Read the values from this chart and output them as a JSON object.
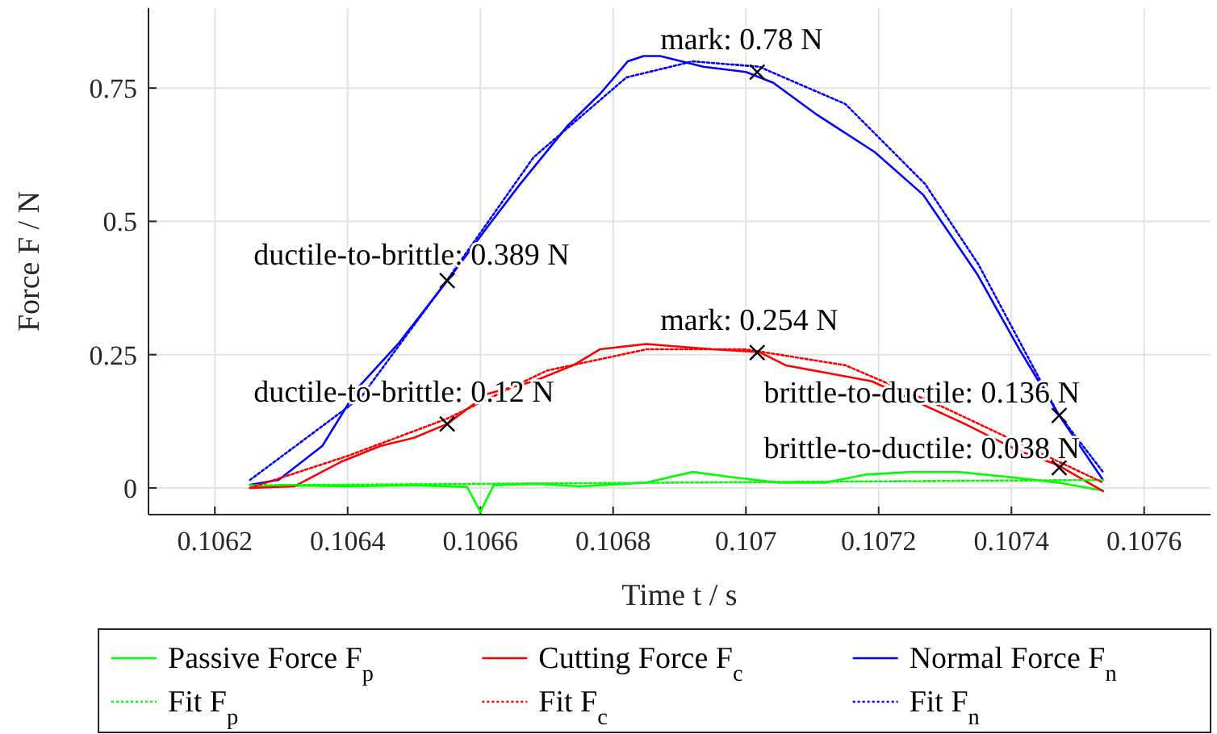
{
  "chart_data": {
    "type": "line",
    "xlabel": "Time t / s",
    "ylabel": "Force F / N",
    "xlim": [
      0.1061,
      0.1077
    ],
    "ylim": [
      -0.05,
      0.9
    ],
    "xticks": [
      0.1062,
      0.1064,
      0.1066,
      0.1068,
      0.107,
      0.1072,
      0.1074,
      0.1076
    ],
    "yticks": [
      0,
      0.25,
      0.5,
      0.75
    ],
    "grid": true,
    "legend": "bottom",
    "line_style": "solid",
    "series": [
      {
        "name": "Passive Force F$_{p}$",
        "color": "#00ff00",
        "x": [
          0.106253,
          0.1063,
          0.1064,
          0.1065,
          0.10658,
          0.1066,
          0.10662,
          0.10668,
          0.10675,
          0.10685,
          0.10692,
          0.10698,
          0.10705,
          0.10712,
          0.10718,
          0.10725,
          0.10732,
          0.1074,
          0.10747,
          0.107538
        ],
        "values": [
          0,
          0.005,
          0.003,
          0.005,
          0.002,
          -0.045,
          0.005,
          0.008,
          0.003,
          0.01,
          0.03,
          0.02,
          0.01,
          0.01,
          0.025,
          0.03,
          0.03,
          0.02,
          0.01,
          -0.005
        ]
      },
      {
        "name": "Cutting Force F$_{c}$",
        "color": "#ff0000",
        "x": [
          0.106253,
          0.10632,
          0.10639,
          0.10645,
          0.1065,
          0.10655,
          0.10661,
          0.10668,
          0.10674,
          0.10678,
          0.10685,
          0.10688,
          0.10695,
          0.10702,
          0.10706,
          0.10719,
          0.10733,
          0.10741,
          0.10747,
          0.107538
        ],
        "values": [
          0,
          0.003,
          0.049,
          0.079,
          0.094,
          0.12,
          0.176,
          0.2,
          0.23,
          0.26,
          0.27,
          0.267,
          0.26,
          0.255,
          0.23,
          0.2,
          0.12,
          0.07,
          0.043,
          -0.006
        ]
      },
      {
        "name": "Normal Force F$_{n}$",
        "color": "#0000ff",
        "x": [
          0.106253,
          0.106296,
          0.106362,
          0.106417,
          0.106476,
          0.106551,
          0.106611,
          0.10666,
          0.106732,
          0.106781,
          0.106822,
          0.106846,
          0.106871,
          0.106936,
          0.107,
          0.107041,
          0.107107,
          0.107194,
          0.107267,
          0.107349,
          0.107412,
          0.10747,
          0.107538
        ],
        "values": [
          0.006,
          0.015,
          0.079,
          0.19,
          0.27,
          0.39,
          0.49,
          0.57,
          0.68,
          0.74,
          0.8,
          0.81,
          0.81,
          0.79,
          0.78,
          0.76,
          0.7,
          0.63,
          0.55,
          0.4,
          0.26,
          0.14,
          0.015
        ]
      },
      {
        "name": "Fit F$_{p}$",
        "color": "#00ff00",
        "line_style": "dotted",
        "x": [
          0.106253,
          0.107538
        ],
        "values": [
          0.005,
          0.015
        ]
      },
      {
        "name": "Fit F$_{c}$",
        "color": "#ff0000",
        "line_style": "dotted",
        "x": [
          0.106253,
          0.1064,
          0.10655,
          0.1067,
          0.10685,
          0.107,
          0.10715,
          0.1073,
          0.10747,
          0.107538
        ],
        "values": [
          0,
          0.06,
          0.13,
          0.22,
          0.26,
          0.26,
          0.23,
          0.15,
          0.05,
          0.01
        ]
      },
      {
        "name": "Fit F$_{n}$",
        "color": "#0000ff",
        "line_style": "dotted",
        "x": [
          0.106253,
          0.10642,
          0.10655,
          0.10668,
          0.10682,
          0.10692,
          0.10702,
          0.10715,
          0.10727,
          0.10735,
          0.10747,
          0.107538
        ],
        "values": [
          0.015,
          0.17,
          0.39,
          0.62,
          0.77,
          0.8,
          0.79,
          0.72,
          0.57,
          0.42,
          0.14,
          0.03
        ]
      },
      {
        "type": "scatter",
        "marker": "cross",
        "color": "#000000",
        "x": [
          0.10655,
          0.107017,
          0.107472,
          0.10655,
          0.107017,
          0.107472
        ],
        "values": [
          0.389,
          0.78,
          0.136,
          0.12,
          0.254,
          0.038
        ]
      }
    ],
    "annotations": [
      {
        "text": "ductile-to-brittle: 0.389 N",
        "x": 0.10655,
        "y": 0.389
      },
      {
        "text": "mark: 0.78 N",
        "x": 0.107017,
        "y": 0.78
      },
      {
        "text": "brittle-to-ductile: 0.136 N",
        "x": 0.107472,
        "y": 0.136
      },
      {
        "text": "ductile-to-brittle: 0.12 N",
        "x": 0.10655,
        "y": 0.12
      },
      {
        "text": "mark: 0.254 N",
        "x": 0.107017,
        "y": 0.254
      },
      {
        "text": "brittle-to-ductile: 0.038 N",
        "x": 0.107472,
        "y": 0.038
      }
    ]
  }
}
